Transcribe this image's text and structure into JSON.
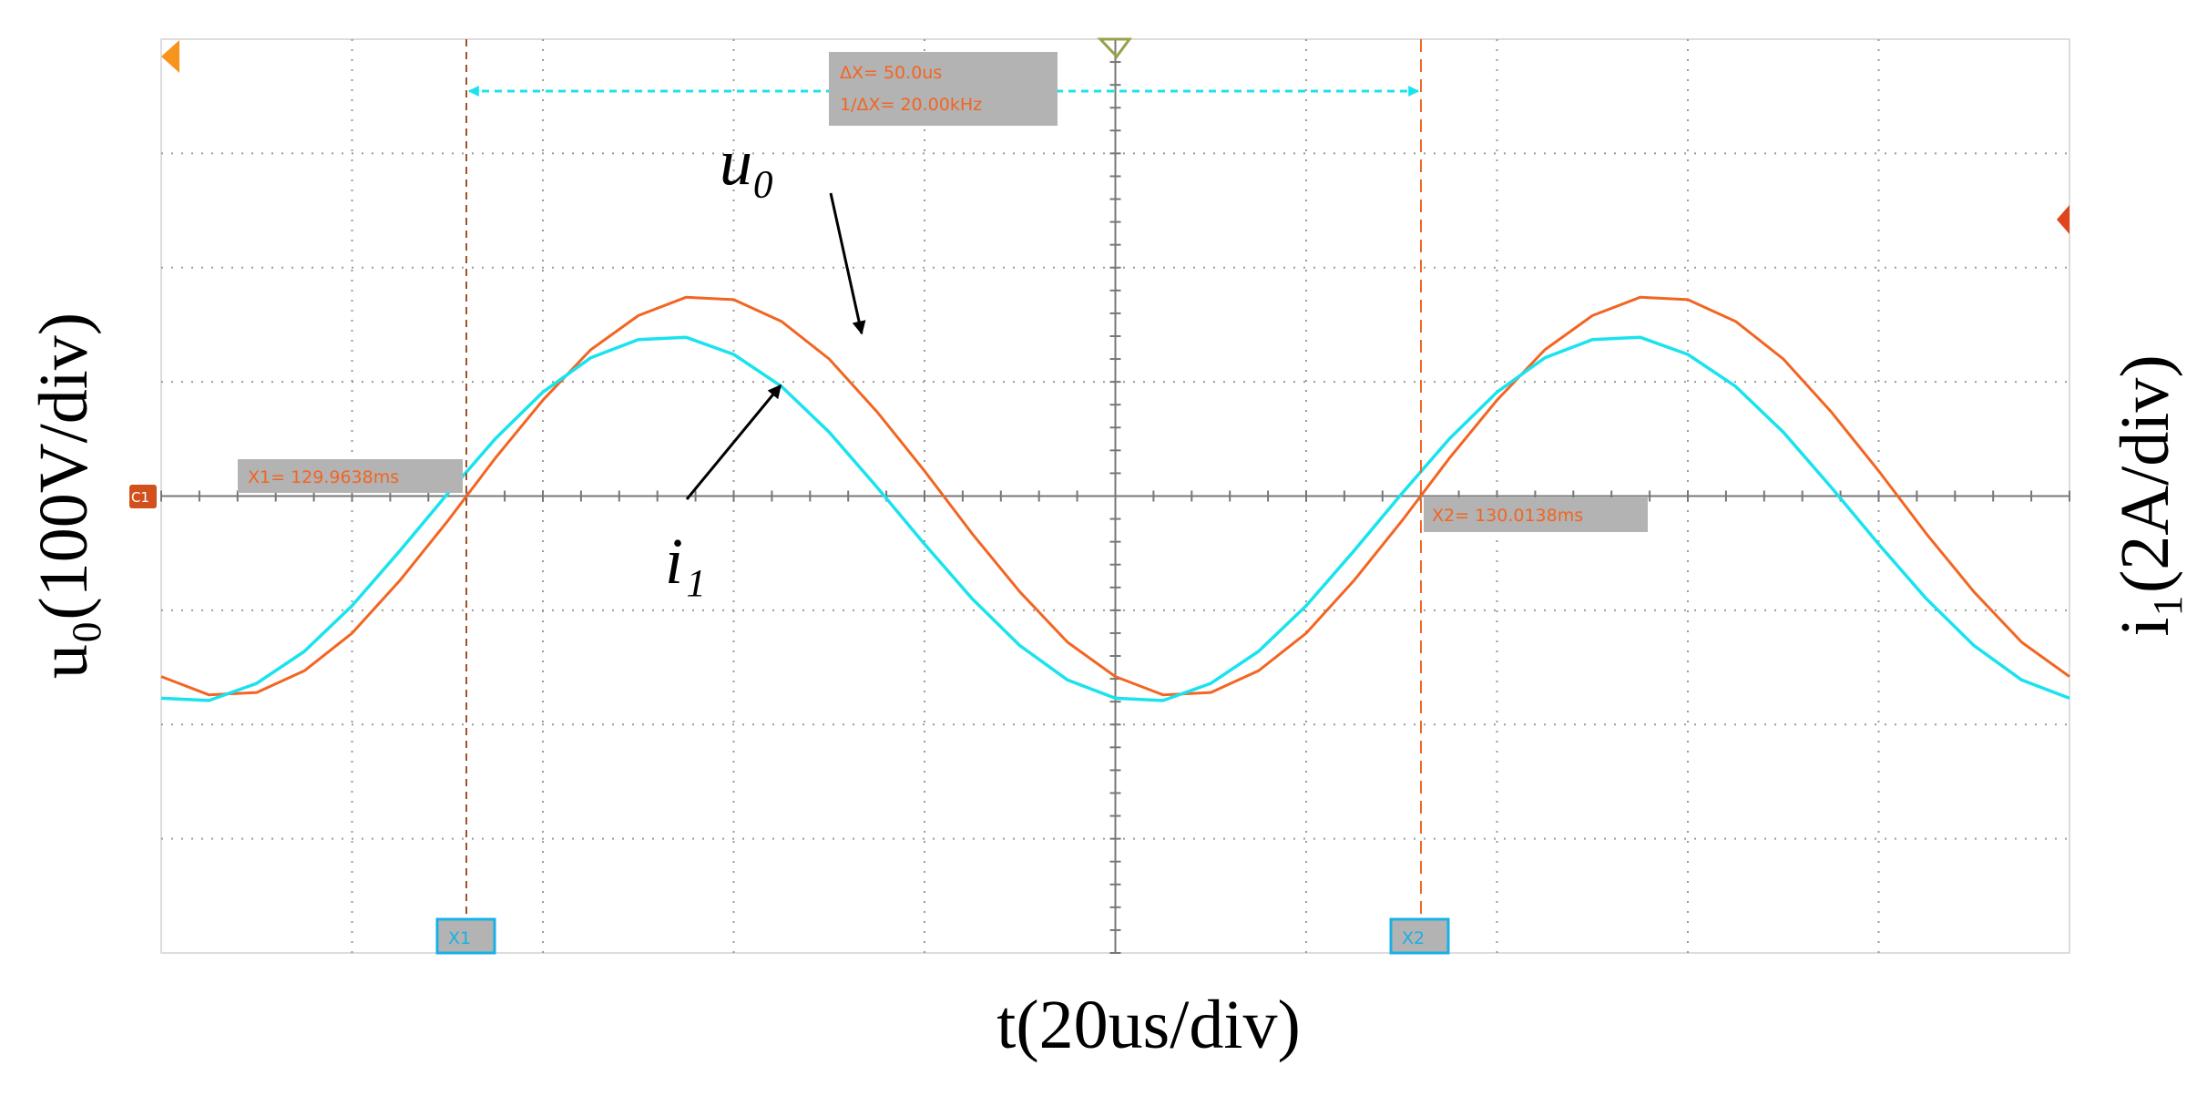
{
  "chart_data": {
    "type": "line",
    "xlabel": "t(20us/div)",
    "ylabel": "u₀(100V/div)",
    "y2label": "i₁(2A/div)",
    "xlim": [
      0,
      10
    ],
    "ylim": [
      -4,
      4
    ],
    "grid": true,
    "x": [
      0,
      0.25,
      0.5,
      0.75,
      1,
      1.25,
      1.5,
      1.75,
      2,
      2.25,
      2.5,
      2.75,
      3,
      3.25,
      3.5,
      3.75,
      4,
      4.25,
      4.5,
      4.75,
      5,
      5.25,
      5.5,
      5.75,
      6,
      6.25,
      6.5,
      6.75,
      7,
      7.25,
      7.5,
      7.75,
      8,
      8.25,
      8.5,
      8.75,
      9,
      9.25,
      9.5,
      9.75,
      10
    ],
    "series": [
      {
        "name": "u₀",
        "color": "#f26522",
        "values": [
          -1.58,
          -1.74,
          -1.72,
          -1.53,
          -1.2,
          -0.74,
          -0.22,
          0.33,
          0.84,
          1.28,
          1.58,
          1.74,
          1.72,
          1.53,
          1.2,
          0.74,
          0.22,
          -0.33,
          -0.84,
          -1.28,
          -1.58,
          -1.74,
          -1.72,
          -1.53,
          -1.2,
          -0.74,
          -0.22,
          0.33,
          0.84,
          1.28,
          1.58,
          1.74,
          1.72,
          1.53,
          1.2,
          0.74,
          0.22,
          -0.33,
          -0.84,
          -1.28,
          -1.58
        ]
      },
      {
        "name": "i₁",
        "color": "#19e3ee",
        "values": [
          -1.77,
          -1.79,
          -1.64,
          -1.36,
          -0.96,
          -0.48,
          0.02,
          0.5,
          0.91,
          1.21,
          1.37,
          1.39,
          1.24,
          0.96,
          0.56,
          0.08,
          -0.42,
          -0.9,
          -1.31,
          -1.61,
          -1.77,
          -1.79,
          -1.64,
          -1.36,
          -0.96,
          -0.48,
          0.02,
          0.5,
          0.91,
          1.21,
          1.37,
          1.39,
          1.24,
          0.96,
          0.56,
          0.08,
          -0.42,
          -0.9,
          -1.31,
          -1.61,
          -1.77
        ]
      }
    ],
    "annotations": {
      "delta": "ΔX= 50.0us",
      "freq": "1/ΔX= 20.00kHz",
      "x1_readout": "X1= 129.9638ms",
      "x2_readout": "X2= 130.0138ms",
      "x1_marker": "X1",
      "x2_marker": "X2",
      "channel": "C1"
    }
  }
}
